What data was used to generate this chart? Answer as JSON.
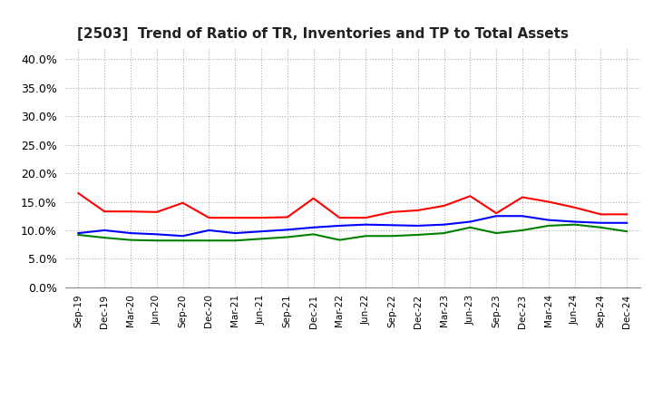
{
  "title": "[2503]  Trend of Ratio of TR, Inventories and TP to Total Assets",
  "x_labels": [
    "Sep-19",
    "Dec-19",
    "Mar-20",
    "Jun-20",
    "Sep-20",
    "Dec-20",
    "Mar-21",
    "Jun-21",
    "Sep-21",
    "Dec-21",
    "Mar-22",
    "Jun-22",
    "Sep-22",
    "Dec-22",
    "Mar-23",
    "Jun-23",
    "Sep-23",
    "Dec-23",
    "Mar-24",
    "Jun-24",
    "Sep-24",
    "Dec-24"
  ],
  "trade_receivables": [
    0.165,
    0.133,
    0.133,
    0.132,
    0.148,
    0.122,
    0.122,
    0.122,
    0.123,
    0.156,
    0.122,
    0.122,
    0.132,
    0.135,
    0.143,
    0.16,
    0.13,
    0.158,
    0.15,
    0.14,
    0.128,
    0.128
  ],
  "inventories": [
    0.095,
    0.1,
    0.095,
    0.093,
    0.09,
    0.1,
    0.095,
    0.098,
    0.101,
    0.105,
    0.108,
    0.11,
    0.109,
    0.108,
    0.11,
    0.115,
    0.125,
    0.125,
    0.118,
    0.115,
    0.113,
    0.113
  ],
  "trade_payables": [
    0.092,
    0.087,
    0.083,
    0.082,
    0.082,
    0.082,
    0.082,
    0.085,
    0.088,
    0.093,
    0.083,
    0.09,
    0.09,
    0.092,
    0.095,
    0.105,
    0.095,
    0.1,
    0.108,
    0.11,
    0.105,
    0.098
  ],
  "tr_color": "#ff0000",
  "inv_color": "#0000ff",
  "tp_color": "#008000",
  "ylim": [
    0.0,
    0.42
  ],
  "yticks": [
    0.0,
    0.05,
    0.1,
    0.15,
    0.2,
    0.25,
    0.3,
    0.35,
    0.4
  ],
  "background_color": "#ffffff",
  "grid_color": "#b0b0b0"
}
